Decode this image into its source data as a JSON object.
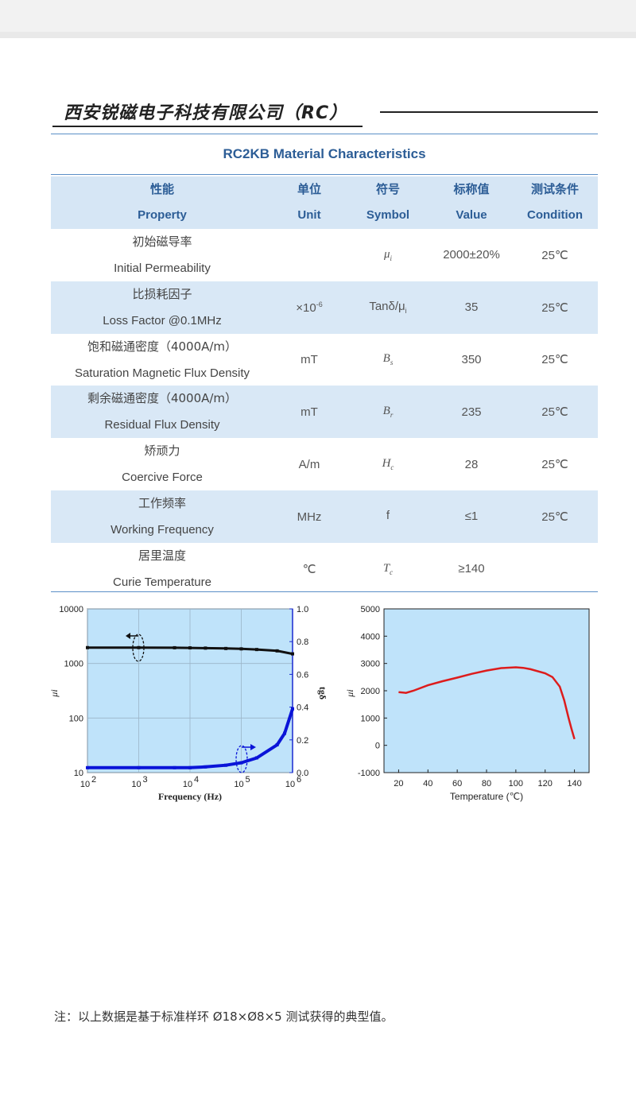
{
  "header": {
    "company": "西安锐磁电子科技有限公司（RC）"
  },
  "table": {
    "title": "RC2KB Material Characteristics",
    "columns": [
      {
        "zh": "性能",
        "en": "Property"
      },
      {
        "zh": "单位",
        "en": "Unit"
      },
      {
        "zh": "符号",
        "en": "Symbol"
      },
      {
        "zh": "标称值",
        "en": "Value"
      },
      {
        "zh": "测试条件",
        "en": "Condition"
      }
    ],
    "rows": [
      {
        "zh": "初始磁导率",
        "en": "Initial Permeability",
        "unit": "",
        "unit_sup": "",
        "symbol": "μ",
        "symbol_sub": "i",
        "value": "2000±20%",
        "condition": "25℃"
      },
      {
        "zh": "比损耗因子",
        "en": "Loss Factor   @0.1MHz",
        "unit": "×10",
        "unit_sup": "-6",
        "symbol": "Tanδ/μ",
        "symbol_sub": "i",
        "value": "35",
        "condition": "25℃"
      },
      {
        "zh": "饱和磁通密度（4000A/m）",
        "en": "Saturation Magnetic Flux Density",
        "unit": "mT",
        "unit_sup": "",
        "symbol": "B",
        "symbol_sub": "s",
        "value": "350",
        "condition": "25℃"
      },
      {
        "zh": "剩余磁通密度（4000A/m）",
        "en": "Residual Flux Density",
        "unit": "mT",
        "unit_sup": "",
        "symbol": "B",
        "symbol_sub": "r",
        "value": "235",
        "condition": "25℃"
      },
      {
        "zh": "矫顽力",
        "en": "Coercive Force",
        "unit": "A/m",
        "unit_sup": "",
        "symbol": "H",
        "symbol_sub": "c",
        "value": "28",
        "condition": "25℃"
      },
      {
        "zh": "工作频率",
        "en": "Working Frequency",
        "unit": "MHz",
        "unit_sup": "",
        "symbol": "f",
        "symbol_sub": "",
        "value": "≤1",
        "condition": "25℃"
      },
      {
        "zh": "居里温度",
        "en": "Curie Temperature",
        "unit": "℃",
        "unit_sup": "",
        "symbol": "T",
        "symbol_sub": "c",
        "value": "≥140",
        "condition": ""
      }
    ]
  },
  "colors": {
    "accent": "#2c5d96",
    "row_band": "#d9e8f6",
    "plot_bg": "#bfe3fa",
    "curve_black": "#111111",
    "curve_blue": "#0a14d8",
    "curve_red": "#dd1c1c"
  },
  "chart_data": [
    {
      "type": "line",
      "xlabel": "Frequency (Hz)",
      "ylabel": "μi",
      "y2label": "tgδ",
      "x_scale": "log",
      "y_scale": "log",
      "xlim": [
        100,
        1000000
      ],
      "ylim": [
        10,
        10000
      ],
      "y2lim": [
        0,
        1.0
      ],
      "x_ticks": [
        "10",
        "10",
        "10",
        "10",
        "10"
      ],
      "x_tick_exp": [
        "2",
        "3",
        "4",
        "5",
        "6"
      ],
      "y_ticks": [
        "10",
        "100",
        "1000",
        "10000"
      ],
      "y2_ticks": [
        "0.0",
        "0.2",
        "0.4",
        "0.6",
        "0.8",
        "1.0"
      ],
      "grid": true,
      "series": [
        {
          "axis": "left",
          "x": [
            100,
            1000,
            5000,
            10000,
            20000,
            50000,
            100000,
            200000,
            500000,
            1000000
          ],
          "y": [
            1950,
            1950,
            1940,
            1930,
            1910,
            1880,
            1850,
            1800,
            1700,
            1500
          ]
        },
        {
          "axis": "right",
          "x": [
            100,
            1000,
            5000,
            10000,
            20000,
            50000,
            100000,
            200000,
            500000,
            700000,
            1000000
          ],
          "y": [
            0.03,
            0.03,
            0.03,
            0.03,
            0.035,
            0.045,
            0.06,
            0.09,
            0.17,
            0.24,
            0.39
          ]
        }
      ]
    },
    {
      "type": "line",
      "xlabel": "Temperature (℃)",
      "ylabel": "μi",
      "xlim": [
        10,
        150
      ],
      "ylim": [
        -1000,
        5000
      ],
      "x_ticks": [
        "20",
        "40",
        "60",
        "80",
        "100",
        "120",
        "140"
      ],
      "y_ticks": [
        "-1000",
        "0",
        "1000",
        "2000",
        "3000",
        "4000",
        "5000"
      ],
      "grid": false,
      "series": [
        {
          "x": [
            20,
            25,
            30,
            40,
            50,
            60,
            70,
            80,
            90,
            100,
            105,
            110,
            120,
            125,
            130,
            133,
            136,
            138,
            140
          ],
          "y": [
            1950,
            1920,
            2000,
            2200,
            2350,
            2480,
            2620,
            2740,
            2830,
            2860,
            2840,
            2790,
            2640,
            2500,
            2150,
            1650,
            1000,
            600,
            230
          ]
        }
      ]
    }
  ],
  "footnote": "注：以上数据是基于标准样环 Ø18×Ø8×5 测试获得的典型值。"
}
